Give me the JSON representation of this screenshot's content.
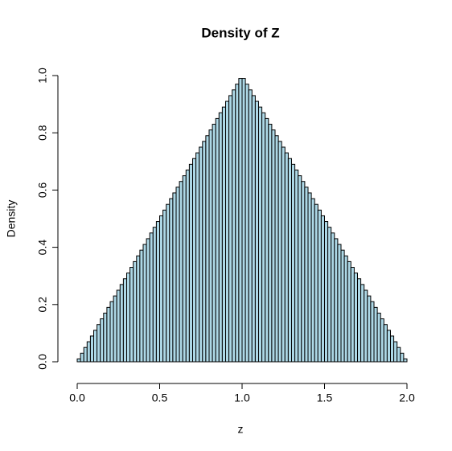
{
  "chart_data": {
    "type": "histogram",
    "title": "Density of Z",
    "x_label": "z",
    "y_label": "Density",
    "bins": [
      0,
      0.02,
      0.04,
      0.06,
      0.08,
      0.1,
      0.12,
      0.14,
      0.16,
      0.18,
      0.2,
      0.22,
      0.24,
      0.26,
      0.28,
      0.3,
      0.32,
      0.34,
      0.36,
      0.38,
      0.4,
      0.42,
      0.44,
      0.46,
      0.48,
      0.5,
      0.52,
      0.54,
      0.56,
      0.58,
      0.6,
      0.62,
      0.64,
      0.66,
      0.68,
      0.7,
      0.72,
      0.74,
      0.76,
      0.78,
      0.8,
      0.82,
      0.84,
      0.86,
      0.88,
      0.9,
      0.92,
      0.94,
      0.96,
      0.98,
      1,
      1.02,
      1.04,
      1.06,
      1.08,
      1.1,
      1.12,
      1.14,
      1.16,
      1.18,
      1.2,
      1.22,
      1.24,
      1.26,
      1.28,
      1.3,
      1.32,
      1.34,
      1.36,
      1.38,
      1.4,
      1.42,
      1.44,
      1.46,
      1.48,
      1.5,
      1.52,
      1.54,
      1.56,
      1.58,
      1.6,
      1.62,
      1.64,
      1.66,
      1.68,
      1.7,
      1.72,
      1.74,
      1.76,
      1.78,
      1.8,
      1.82,
      1.84,
      1.86,
      1.88,
      1.9,
      1.92,
      1.94,
      1.96,
      1.98,
      2
    ],
    "values": [
      0.01,
      0.03,
      0.05,
      0.07,
      0.09,
      0.11,
      0.13,
      0.15,
      0.17,
      0.19,
      0.21,
      0.23,
      0.25,
      0.27,
      0.29,
      0.31,
      0.33,
      0.35,
      0.37,
      0.39,
      0.41,
      0.43,
      0.45,
      0.47,
      0.49,
      0.51,
      0.53,
      0.55,
      0.57,
      0.59,
      0.61,
      0.63,
      0.65,
      0.67,
      0.69,
      0.71,
      0.73,
      0.75,
      0.77,
      0.79,
      0.81,
      0.83,
      0.85,
      0.87,
      0.89,
      0.91,
      0.93,
      0.95,
      0.97,
      0.99,
      0.99,
      0.97,
      0.95,
      0.93,
      0.91,
      0.89,
      0.87,
      0.85,
      0.83,
      0.81,
      0.79,
      0.77,
      0.75,
      0.73,
      0.71,
      0.69,
      0.67,
      0.65,
      0.63,
      0.61,
      0.59,
      0.57,
      0.55,
      0.53,
      0.51,
      0.49,
      0.47,
      0.45,
      0.43,
      0.41,
      0.39,
      0.37,
      0.35,
      0.33,
      0.31,
      0.29,
      0.27,
      0.25,
      0.23,
      0.21,
      0.19,
      0.17,
      0.15,
      0.13,
      0.11,
      0.09,
      0.07,
      0.05,
      0.03,
      0.01
    ],
    "color": "#add8e6",
    "xlim": [
      0,
      2
    ],
    "ylim": [
      0,
      1
    ],
    "xticks": [
      {
        "value": 0,
        "label": "0.0"
      },
      0.5,
      {
        "value": 1,
        "label": "1.0"
      },
      1.5,
      {
        "value": 2,
        "label": "2.0"
      }
    ],
    "yticks": [
      {
        "value": 0,
        "label": "0.0"
      },
      0.2,
      0.4,
      0.6,
      0.8,
      {
        "value": 1,
        "label": "1.0"
      }
    ],
    "grid": false
  }
}
